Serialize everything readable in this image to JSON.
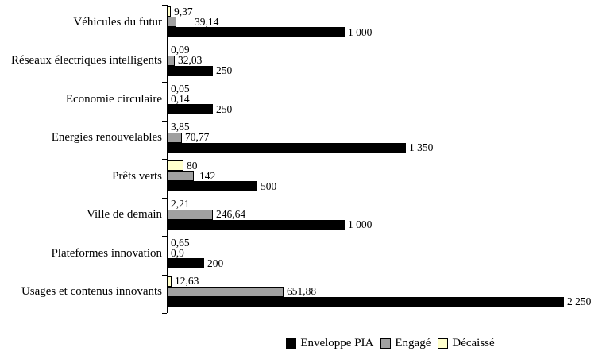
{
  "chart_data": {
    "type": "bar",
    "orientation": "horizontal",
    "title": "",
    "xlabel": "",
    "ylabel": "",
    "xlim": [
      0,
      2500
    ],
    "grid": false,
    "legend_position": "bottom-center",
    "row_order_top_to_bottom": [
      "Décaissé",
      "Engagé",
      "Enveloppe PIA"
    ],
    "categories": [
      "Véhicules du futur",
      "Réseaux électriques intelligents",
      "Economie circulaire",
      "Energies renouvelables",
      "Prêts verts",
      "Ville de demain",
      "Plateformes innovation",
      "Usages et contenus innovants"
    ],
    "series": [
      {
        "name": "Enveloppe PIA",
        "color": "#000000",
        "values": [
          1000,
          250,
          250,
          1350,
          500,
          1000,
          200,
          2250
        ],
        "labels": [
          "1 000",
          "250",
          "250",
          "1 350",
          "500",
          "1 000",
          "200",
          "2 250"
        ]
      },
      {
        "name": "Engagé",
        "color": "#A0A0A0",
        "values": [
          39.14,
          32.03,
          0.14,
          70.77,
          142,
          246.64,
          0.9,
          651.88
        ],
        "labels": [
          "39,14",
          "32,03",
          "0,14",
          "70,77",
          "142",
          "246,64",
          "0,9",
          "651,88"
        ]
      },
      {
        "name": "Décaissé",
        "color": "#FFFFCC",
        "values": [
          9.37,
          0.09,
          0.05,
          3.85,
          80,
          2.21,
          0.65,
          12.63
        ],
        "labels": [
          "9,37",
          "0,09",
          "0,05",
          "3,85",
          "80",
          "2,21",
          "0,65",
          "12,63"
        ]
      }
    ],
    "legend": [
      "Enveloppe PIA",
      "Engagé",
      "Décaissé"
    ]
  },
  "colors": {
    "background": "#FFFFFF",
    "axis": "#000000",
    "text": "#000000"
  }
}
